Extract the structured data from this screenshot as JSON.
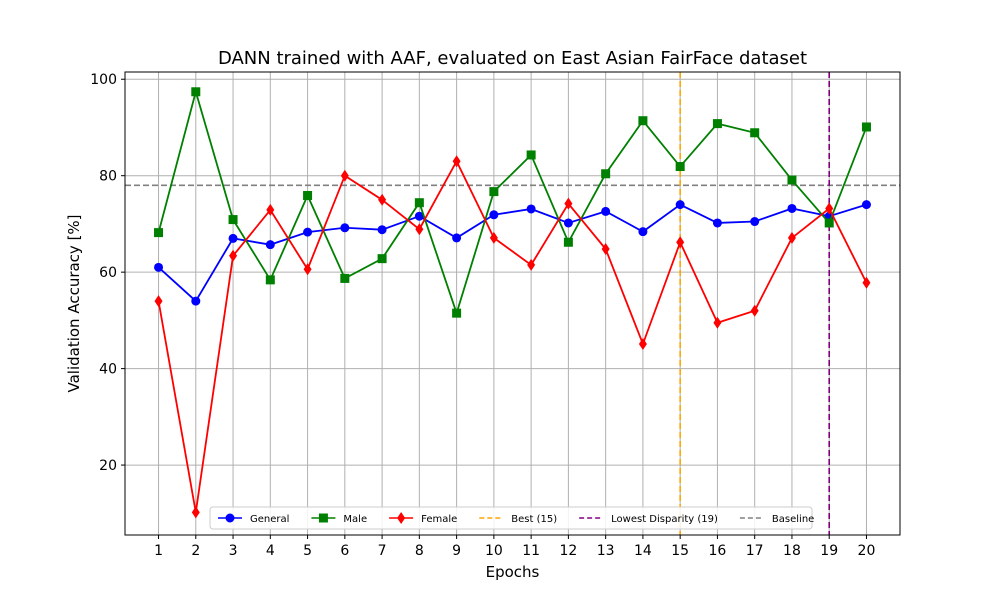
{
  "chart_data": {
    "type": "line",
    "title": "DANN trained with AAF, evaluated on East Asian FairFace dataset",
    "xlabel": "Epochs",
    "ylabel": "Validation Accuracy [%]",
    "x": [
      1,
      2,
      3,
      4,
      5,
      6,
      7,
      8,
      9,
      10,
      11,
      12,
      13,
      14,
      15,
      16,
      17,
      18,
      19,
      20
    ],
    "xlim": [
      0.1,
      20.9
    ],
    "ylim": [
      5.5,
      101.5
    ],
    "yticks": [
      20,
      40,
      60,
      80,
      100
    ],
    "grid": true,
    "legend_position": "bottom",
    "series": [
      {
        "name": "General",
        "color": "#0000ff",
        "marker": "circle",
        "values": [
          61.0,
          54.0,
          67.0,
          65.7,
          68.3,
          69.2,
          68.8,
          71.6,
          67.1,
          71.9,
          73.1,
          70.2,
          72.6,
          68.4,
          74.0,
          70.2,
          70.5,
          73.2,
          71.6,
          74.0
        ]
      },
      {
        "name": "Male",
        "color": "#008000",
        "marker": "square",
        "values": [
          68.2,
          97.4,
          70.9,
          58.4,
          75.9,
          58.7,
          62.8,
          74.4,
          51.5,
          76.7,
          84.3,
          66.2,
          80.4,
          91.4,
          81.9,
          90.8,
          88.9,
          79.1,
          70.2,
          90.1
        ]
      },
      {
        "name": "Female",
        "color": "#ff0000",
        "marker": "diamond",
        "values": [
          54.0,
          10.2,
          63.4,
          72.9,
          60.6,
          80.0,
          75.0,
          68.9,
          83.0,
          67.1,
          61.5,
          74.2,
          64.8,
          45.1,
          66.2,
          49.5,
          52.0,
          67.1,
          73.2,
          57.8
        ]
      }
    ],
    "vertical_lines": [
      {
        "name": "Best (15)",
        "x": 15,
        "color": "#ffa500"
      },
      {
        "name": "Lowest Disparity (19)",
        "x": 19,
        "color": "#800080"
      }
    ],
    "horizontal_lines": [
      {
        "name": "Baseline",
        "y": 78,
        "color": "#808080"
      }
    ]
  }
}
